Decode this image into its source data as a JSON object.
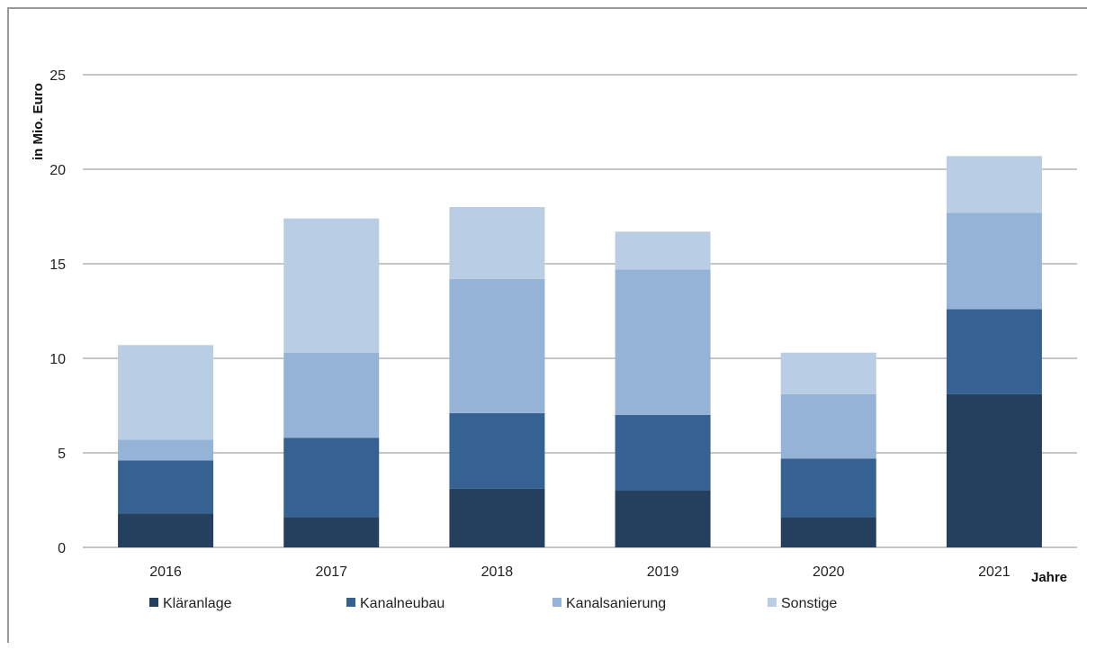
{
  "chart_data": {
    "type": "bar",
    "stacked": true,
    "title": "",
    "xlabel": "Jahre",
    "ylabel": "in Mio. Euro",
    "ylim": [
      0,
      25
    ],
    "yticks": [
      0,
      5,
      10,
      15,
      20,
      25
    ],
    "grid": true,
    "legend_position": "bottom",
    "categories": [
      "2016",
      "2017",
      "2018",
      "2019",
      "2020",
      "2021"
    ],
    "series": [
      {
        "name": "Kläranlage",
        "color": "#253f5f",
        "values": [
          1.8,
          1.6,
          3.1,
          3.0,
          1.6,
          8.1
        ]
      },
      {
        "name": "Kanalneubau",
        "color": "#366193",
        "values": [
          2.8,
          4.2,
          4.0,
          4.0,
          3.1,
          4.5
        ]
      },
      {
        "name": "Kanalsanierung",
        "color": "#95b3d7",
        "values": [
          1.1,
          4.5,
          7.1,
          7.7,
          3.4,
          5.1
        ]
      },
      {
        "name": "Sonstige",
        "color": "#b9cde5",
        "values": [
          5.0,
          7.1,
          3.8,
          2.0,
          2.2,
          3.0
        ]
      }
    ]
  }
}
